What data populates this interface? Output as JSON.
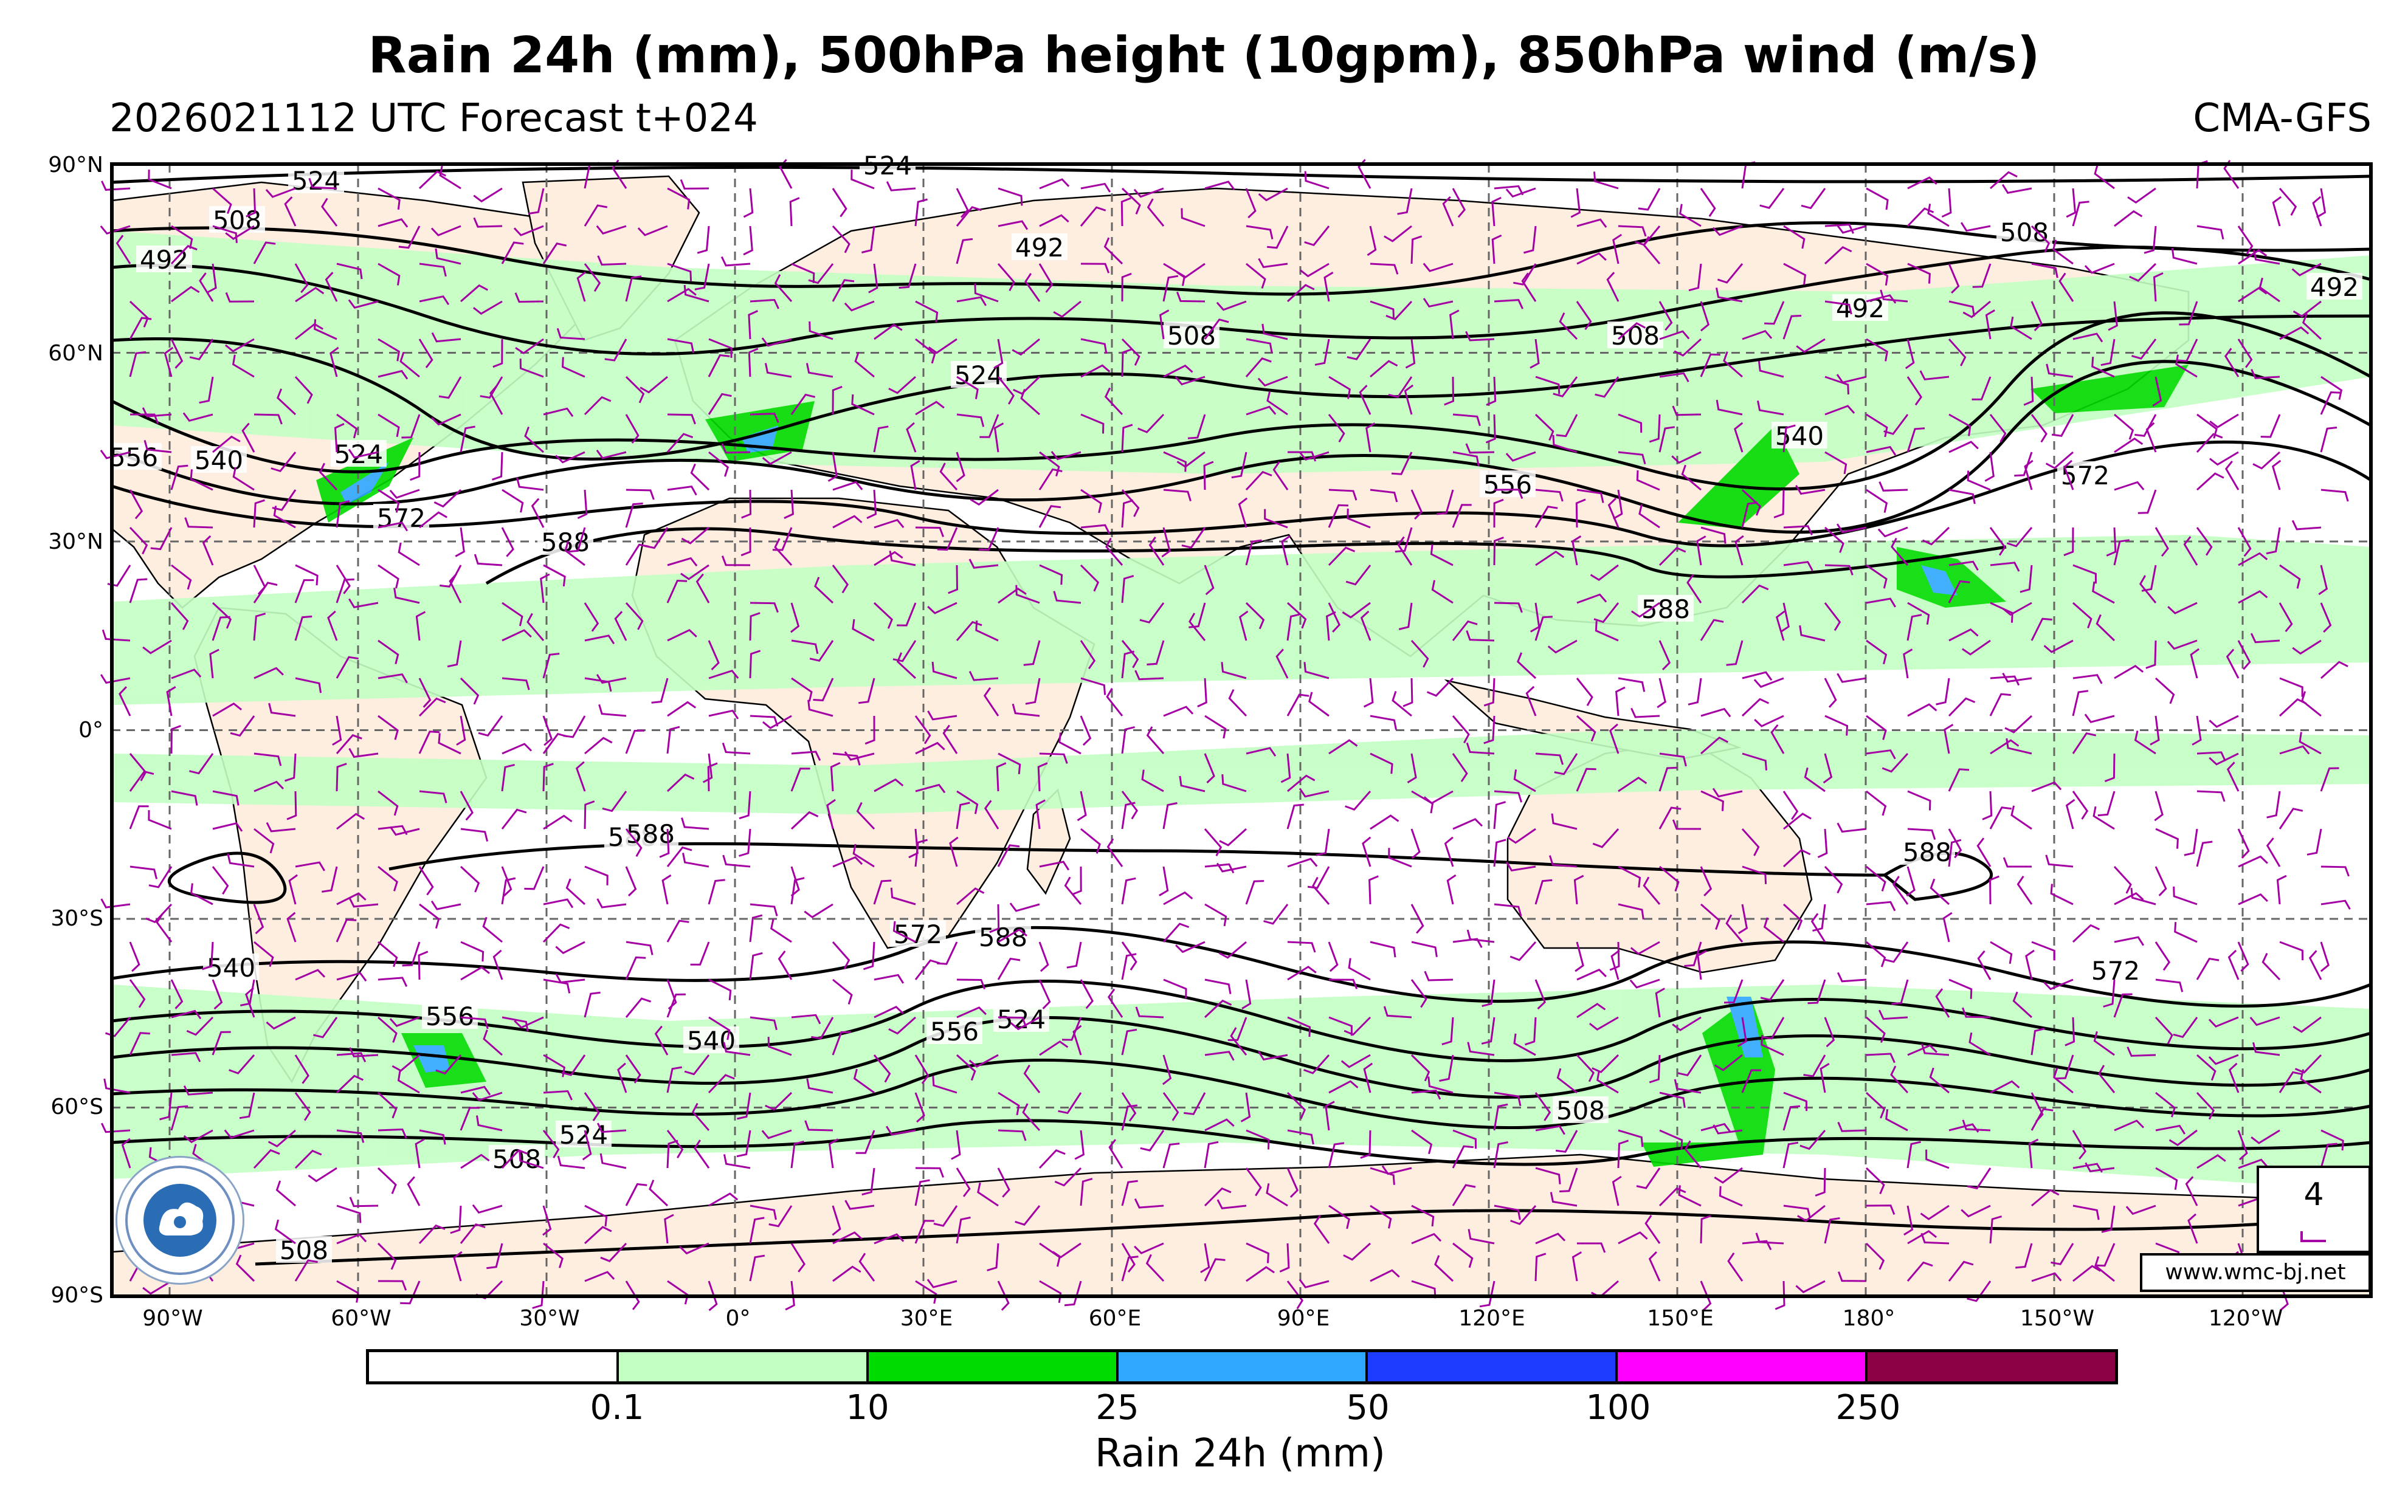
{
  "header": {
    "title": "Rain 24h (mm), 500hPa height (10gpm), 850hPa wind (m/s)",
    "subtitle": "2026021112 UTC Forecast t+024",
    "model": "CMA-GFS"
  },
  "map": {
    "projection": "cylindrical-equidistant",
    "lat_labels": [
      "90°N",
      "60°N",
      "30°N",
      "0°",
      "30°S",
      "60°S",
      "90°S"
    ],
    "lon_labels": [
      "90°W",
      "60°W",
      "30°W",
      "0°",
      "30°E",
      "60°E",
      "90°E",
      "120°E",
      "150°E",
      "180°",
      "150°W",
      "120°W"
    ],
    "gridlines": "dashed",
    "contour_labels": [
      "524",
      "508",
      "492",
      "524",
      "492",
      "508",
      "524",
      "508",
      "508",
      "492",
      "492",
      "556",
      "540",
      "524",
      "572",
      "588",
      "556",
      "540",
      "572",
      "588",
      "588",
      "588",
      "588",
      "588",
      "572",
      "572",
      "540",
      "556",
      "540",
      "556",
      "524",
      "508",
      "508",
      "524",
      "508"
    ],
    "wind_barb_color": "#a400a4"
  },
  "legend": {
    "label": "Rain 24h (mm)",
    "ticks": [
      "0.1",
      "10",
      "25",
      "50",
      "100",
      "250"
    ],
    "colors": [
      "#ffffff",
      "#c3ffc3",
      "#00dc00",
      "#2ea8ff",
      "#1e3cff",
      "#ff00ff",
      "#8c0046"
    ]
  },
  "wind_reference": {
    "value": "4"
  },
  "footer": {
    "url": "www.wmc-bj.net"
  },
  "colors": {
    "land": "#fdeee0",
    "ocean": "#ffffff",
    "contour": "#000000",
    "rain_light": "#c3ffc3",
    "rain_moderate": "#00dc00"
  }
}
